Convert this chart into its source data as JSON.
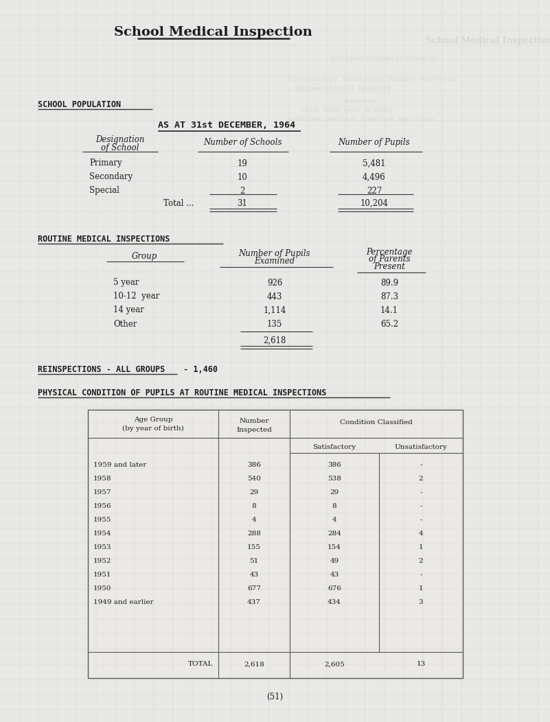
{
  "title": "School Medical Inspection",
  "bg_color": "#e8e8e6",
  "section1_header": "SCHOOL POPULATION",
  "section1_subheader": "AS AT 31st DECEMBER, 1964",
  "school_pop_rows": [
    [
      "Primary",
      "19",
      "5,481"
    ],
    [
      "Secondary",
      "10",
      "4,496"
    ],
    [
      "Special",
      "2",
      "227"
    ]
  ],
  "school_pop_total": [
    "Total ...",
    "31",
    "10,204"
  ],
  "section2_header": "ROUTINE MEDICAL INSPECTIONS",
  "routine_rows": [
    [
      "5 year",
      "926",
      "89.9"
    ],
    [
      "10-12  year",
      "443",
      "87.3"
    ],
    [
      "14 year",
      "1,114",
      "14.1"
    ],
    [
      "Other",
      "135",
      "65.2"
    ]
  ],
  "routine_total": "2,618",
  "reinspection_line_part1": "REINSPECTIONS - ALL GROUPS",
  "reinspection_line_part2": " - 1,460",
  "section3_header": "PHYSICAL CONDITION OF PUPILS AT ROUTINE MEDICAL INSPECTIONS",
  "phys_col1": "Age Group\n(by year of birth)",
  "phys_col2": "Number\nInspected",
  "phys_col3a": "Condition Classified",
  "phys_col3b": "Satisfactory",
  "phys_col3c": "Unsatisfactory",
  "phys_rows": [
    [
      "1959 and later",
      "386",
      "386",
      "-"
    ],
    [
      "1958",
      "540",
      "538",
      "2"
    ],
    [
      "1957",
      "29",
      "29",
      "-"
    ],
    [
      "1956",
      "8",
      "8",
      "-"
    ],
    [
      "1955",
      "4",
      "4",
      "-"
    ],
    [
      "1954",
      "288",
      "284",
      "4"
    ],
    [
      "1953",
      "155",
      "154",
      "1"
    ],
    [
      "1952",
      "51",
      "49",
      "2"
    ],
    [
      "1951",
      "43",
      "43",
      "-"
    ],
    [
      "1950",
      "677",
      "676",
      "1"
    ],
    [
      "1949 and earlier",
      "437",
      "434",
      "3"
    ]
  ],
  "phys_total": [
    "TOTAL",
    "2,618",
    "2,605",
    "13"
  ],
  "footer": "(51)"
}
